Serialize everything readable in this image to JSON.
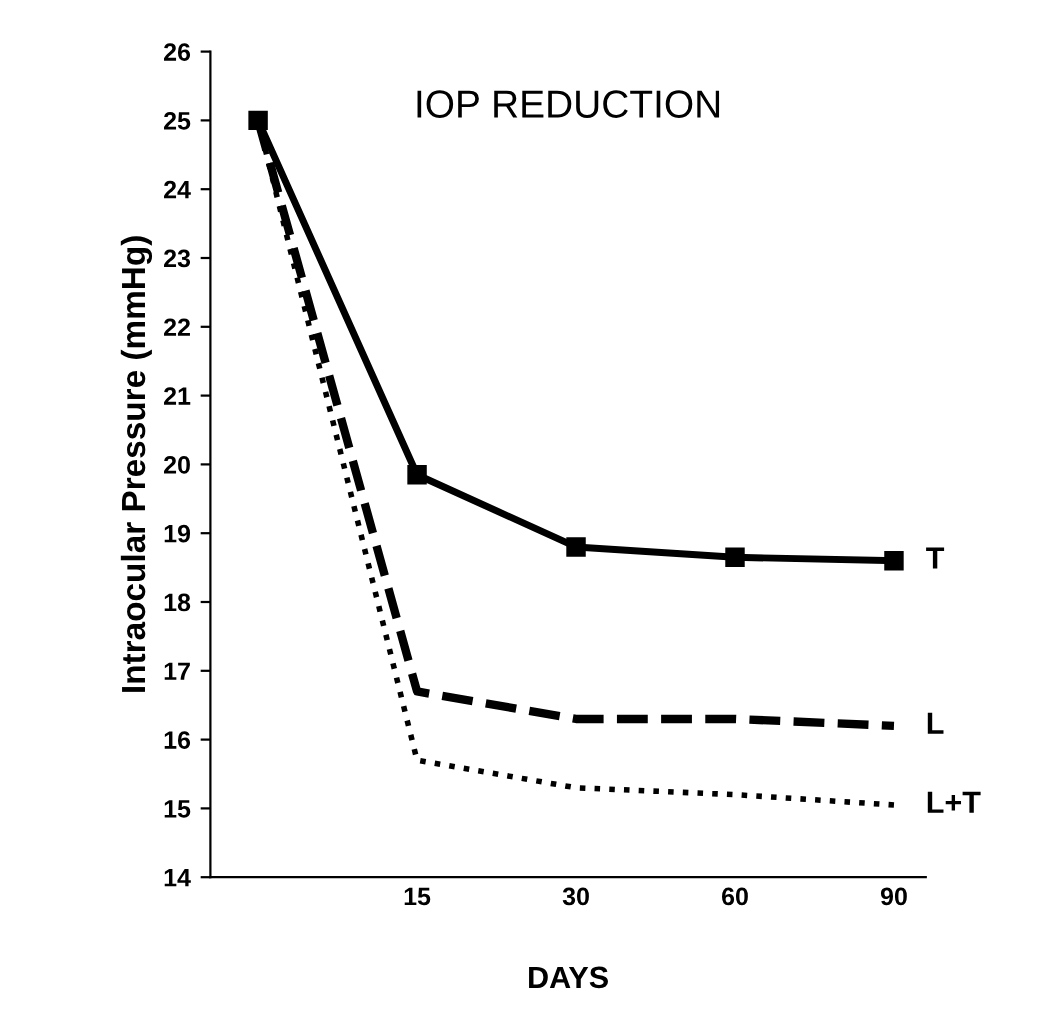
{
  "chart_data": {
    "type": "line",
    "title": "IOP REDUCTION",
    "xlabel": "DAYS",
    "ylabel": "Intraocular Pressure (mmHg)",
    "categories": [
      null,
      "15",
      "30",
      "60",
      "90"
    ],
    "ylim": [
      14,
      26
    ],
    "yticks": [
      14,
      15,
      16,
      17,
      18,
      19,
      20,
      21,
      22,
      23,
      24,
      25,
      26
    ],
    "grid": false,
    "legend": false,
    "series": [
      {
        "name": "T",
        "color": "#000000",
        "marker": "square",
        "line_style": "solid",
        "values": [
          25,
          19.85,
          18.8,
          18.65,
          18.6
        ]
      },
      {
        "name": "L",
        "color": "#000000",
        "marker": "none",
        "line_style": "dashed",
        "values": [
          25,
          16.7,
          16.3,
          16.3,
          16.2
        ]
      },
      {
        "name": "L+T",
        "color": "#000000",
        "marker": "none",
        "line_style": "dotted",
        "values": [
          25,
          15.7,
          15.3,
          15.2,
          15.05
        ]
      }
    ]
  }
}
